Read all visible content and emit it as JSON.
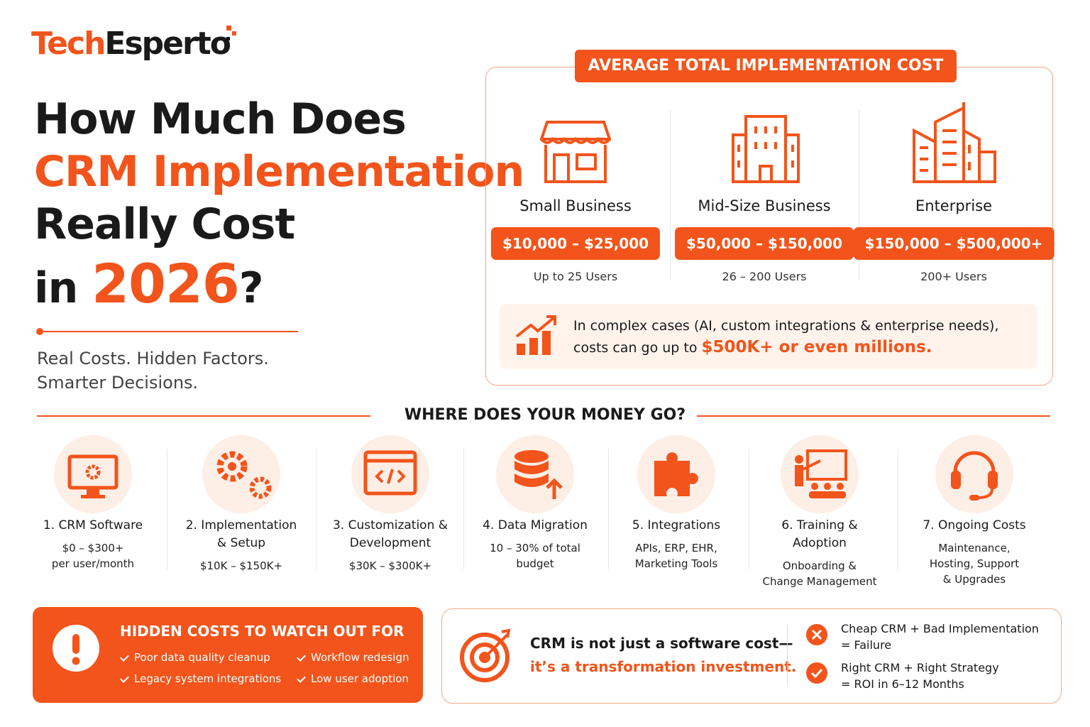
{
  "brand": {
    "logo_part1": "Tech",
    "logo_part2": "Esperto"
  },
  "header": {
    "title_lines": [
      "How Much Does",
      "CRM Implementation",
      "Really Cost"
    ],
    "title_in": "in",
    "title_year": "2026",
    "title_end": "?",
    "subtitle_lines": [
      "Real Costs. Hidden Factors.",
      "Smarter Decisions."
    ]
  },
  "average_cost": {
    "title": "AVERAGE TOTAL IMPLEMENTATION COST",
    "tiers": [
      {
        "name": "Small Business",
        "price": "$10,000 – $25,000",
        "users": "Up to 25 Users"
      },
      {
        "name": "Mid-Size Business",
        "price": "$50,000 – $150,000",
        "users": "26 – 200 Users"
      },
      {
        "name": "Enterprise",
        "price": "$150,000 – $500,000+",
        "users": "200+ Users"
      }
    ],
    "note": {
      "line1": "In complex cases (AI, custom integrations & enterprise needs),",
      "line2": "costs can go up to",
      "highlight": "$500K+ or even millions."
    }
  },
  "money": {
    "title": "WHERE DOES YOUR MONEY GO?",
    "items": [
      {
        "title": [
          "1. CRM Software"
        ],
        "detail": [
          "$0 – $300+",
          "per user/month"
        ]
      },
      {
        "title": [
          "2. Implementation",
          "& Setup"
        ],
        "detail": [
          "$10K – $150K+"
        ]
      },
      {
        "title": [
          "3. Customization &",
          "Development"
        ],
        "detail": [
          "$30K – $300K+"
        ]
      },
      {
        "title": [
          "4. Data Migration"
        ],
        "detail": [
          "10 – 30% of total",
          "budget"
        ]
      },
      {
        "title": [
          "5. Integrations"
        ],
        "detail": [
          "APIs, ERP, EHR,",
          "Marketing Tools"
        ]
      },
      {
        "title": [
          "6. Training &",
          "Adoption"
        ],
        "detail": [
          "Onboarding &",
          "Change Management"
        ]
      },
      {
        "title": [
          "7. Ongoing Costs"
        ],
        "detail": [
          "Maintenance,",
          "Hosting, Support",
          "& Upgrades"
        ]
      }
    ]
  },
  "hidden": {
    "title": "HIDDEN COSTS TO WATCH OUT FOR",
    "items": [
      "Poor data quality cleanup",
      "Workflow redesign",
      "Legacy system integrations",
      "Low user adoption"
    ]
  },
  "insight": {
    "line1": "CRM is not just a software cost—",
    "line2": "it’s a transformation investment.",
    "outcomes": [
      {
        "lines": [
          "Cheap CRM + Bad Implementation",
          "= Failure"
        ]
      },
      {
        "lines": [
          "Right CRM + Right Strategy",
          "= ROI in 6–12 Months"
        ]
      }
    ]
  }
}
